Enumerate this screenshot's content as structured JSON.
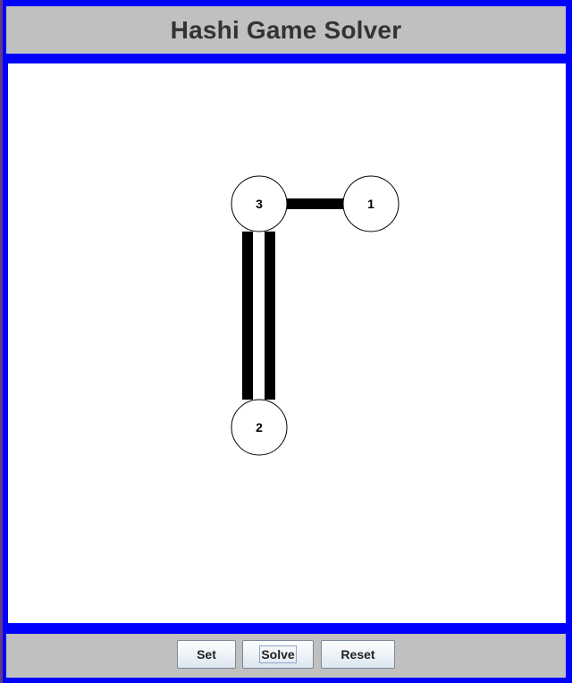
{
  "header": {
    "title": "Hashi Game Solver"
  },
  "board": {
    "islands": [
      {
        "id": "a",
        "value": "3"
      },
      {
        "id": "b",
        "value": "1"
      },
      {
        "id": "c",
        "value": "2"
      }
    ],
    "bridges": [
      {
        "from": "a",
        "to": "b",
        "count": 1
      },
      {
        "from": "a",
        "to": "c",
        "count": 2
      }
    ]
  },
  "footer": {
    "set_label": "Set",
    "solve_label": "Solve",
    "reset_label": "Reset"
  },
  "colors": {
    "frame": "#0000ff",
    "panel": "#c0c0c0",
    "board": "#ffffff",
    "bridge": "#000000",
    "title_text": "#333333"
  }
}
